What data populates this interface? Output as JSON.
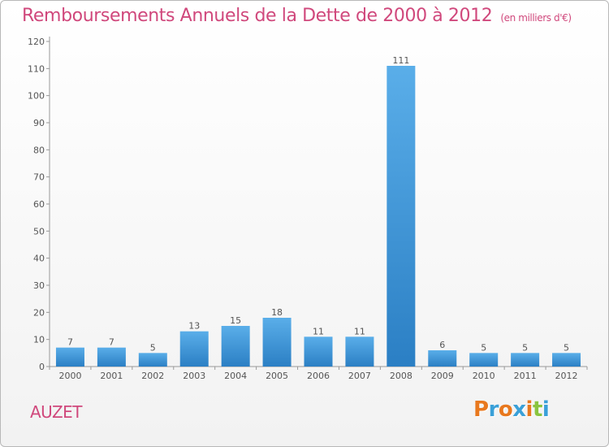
{
  "header": {
    "title": "Remboursements Annuels de la Dette de 2000 à 2012",
    "unit": "(en milliers d'€)"
  },
  "footer": {
    "commune": "AUZET",
    "logo_letters": [
      "P",
      "r",
      "o",
      "x",
      "i",
      "t",
      "i"
    ]
  },
  "colors": {
    "title": "#d0487c",
    "bar_top": "#5aaee9",
    "bar_bottom": "#2b7fc4",
    "axis": "#999999",
    "grid": "#dddddd",
    "logo": [
      "#e8781e",
      "#3aa0d8",
      "#e8781e",
      "#3aa0d8",
      "#e8781e",
      "#8ac43f",
      "#3aa0d8"
    ]
  },
  "chart_data": {
    "type": "bar",
    "title": "Remboursements Annuels de la Dette de 2000 à 2012",
    "ylabel": "en milliers d'€",
    "xlabel": "",
    "categories": [
      "2000",
      "2001",
      "2002",
      "2003",
      "2004",
      "2005",
      "2006",
      "2007",
      "2008",
      "2009",
      "2010",
      "2011",
      "2012"
    ],
    "values": [
      7,
      7,
      5,
      13,
      15,
      18,
      11,
      11,
      111,
      6,
      5,
      5,
      5
    ],
    "ylim": [
      0,
      120
    ],
    "yticks": [
      0,
      10,
      20,
      30,
      40,
      50,
      60,
      70,
      80,
      90,
      100,
      110,
      120
    ],
    "grid": false,
    "data_labels": true
  }
}
